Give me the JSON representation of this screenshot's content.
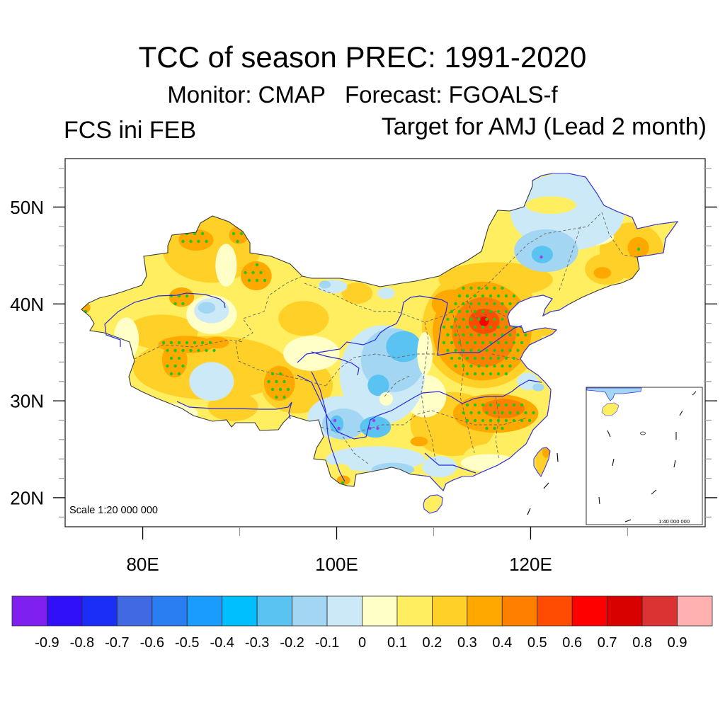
{
  "header": {
    "title": "TCC of season PREC: 1991-2020",
    "subtitle": "Monitor: CMAP   Forecast: FGOALS-f",
    "left_label": "FCS ini FEB",
    "right_label": "Target for AMJ (Lead 2 month)"
  },
  "chart_data": {
    "type": "heatmap",
    "title": "TCC of season PREC: 1991-2020",
    "subtitle": "Monitor: CMAP   Forecast: FGOALS-f",
    "left_string": "FCS ini FEB",
    "right_string": "Target for AMJ (Lead 2 month)",
    "xlabel": "",
    "ylabel": "",
    "xlim": [
      72,
      138
    ],
    "ylim": [
      17,
      55
    ],
    "grid": false,
    "x_ticks": [
      {
        "value": 80,
        "label": "80E"
      },
      {
        "value": 100,
        "label": "100E"
      },
      {
        "value": 120,
        "label": "120E"
      }
    ],
    "x_minor_ticks": [
      90,
      110,
      130
    ],
    "y_ticks": [
      {
        "value": 50,
        "label": "50N"
      },
      {
        "value": 40,
        "label": "40N"
      },
      {
        "value": 30,
        "label": "30N"
      },
      {
        "value": 20,
        "label": "20N"
      }
    ],
    "y_minor_step": 2,
    "scale_label": "Scale 1:20 000 000",
    "inset_scale_label": "1:40 000 000",
    "colorbar": {
      "position": "bottom",
      "levels": [
        -0.9,
        -0.8,
        -0.7,
        -0.6,
        -0.5,
        -0.4,
        -0.3,
        -0.2,
        -0.1,
        0,
        0.1,
        0.2,
        0.3,
        0.4,
        0.5,
        0.6,
        0.7,
        0.8,
        0.9
      ],
      "labels": [
        "-0.9",
        "-0.8",
        "-0.7",
        "-0.6",
        "-0.5",
        "-0.4",
        "-0.3",
        "-0.2",
        "-0.1",
        "0",
        "0.1",
        "0.2",
        "0.3",
        "0.4",
        "0.5",
        "0.6",
        "0.7",
        "0.8",
        "0.9"
      ],
      "colors": [
        "#8020F0",
        "#3010F8",
        "#1A2EF5",
        "#4169E1",
        "#2B7DF2",
        "#1A9CFF",
        "#00BFFF",
        "#5AC3F2",
        "#A2D6F2",
        "#CCE9F8",
        "#FFFFC8",
        "#FFEE60",
        "#FFD028",
        "#FFA800",
        "#FF8000",
        "#FF4C00",
        "#FF0000",
        "#D90000",
        "#DB3333",
        "#FFB0B0"
      ]
    },
    "base_value": 0.15,
    "field": [
      {
        "lon": 87.1,
        "lat": 45.8,
        "dlon": 5.1,
        "dlat": 3.6,
        "value": 0.25
      },
      {
        "lon": 82.0,
        "lat": 37.1,
        "dlon": 3.7,
        "dlat": 1.8,
        "value": 0.25
      },
      {
        "lon": 87.1,
        "lat": 33.4,
        "dlon": 8.1,
        "dlat": 3.3,
        "value": 0.25
      },
      {
        "lon": 95.9,
        "lat": 31.6,
        "dlon": 3.7,
        "dlat": 2.9,
        "value": 0.25
      },
      {
        "lon": 89.3,
        "lat": 29.4,
        "dlon": 2.6,
        "dlat": 1.5,
        "value": 0.25
      },
      {
        "lon": 96.6,
        "lat": 38.5,
        "dlon": 2.6,
        "dlat": 1.8,
        "value": 0.25
      },
      {
        "lon": 102.1,
        "lat": 41.1,
        "dlon": 1.6,
        "dlat": 1.1,
        "value": 0.25
      },
      {
        "lon": 112.0,
        "lat": 27.6,
        "dlon": 4.4,
        "dlat": 3.3,
        "value": 0.25
      },
      {
        "lon": 115.0,
        "lat": 37.5,
        "dlon": 6.2,
        "dlat": 6.2,
        "value": 0.25
      },
      {
        "lon": 116.4,
        "lat": 42.5,
        "dlon": 5.9,
        "dlat": 1.8,
        "value": 0.25
      },
      {
        "lon": 130.4,
        "lat": 45.5,
        "dlon": 3.3,
        "dlat": 2.9,
        "value": 0.25
      },
      {
        "lon": 127.8,
        "lat": 43.6,
        "dlon": 2.2,
        "dlat": 1.6,
        "value": 0.25
      },
      {
        "lon": 121.6,
        "lat": 37.4,
        "dlon": 1.8,
        "dlat": 0.7,
        "value": 0.25
      },
      {
        "lon": 121.2,
        "lat": 23.8,
        "dlon": 0.7,
        "dlat": 1.5,
        "value": 0.25
      },
      {
        "lon": 82.0,
        "lat": 28.7,
        "dlon": 3.7,
        "dlat": 1.1,
        "value": 0.05
      },
      {
        "lon": 78.3,
        "lat": 36.4,
        "dlon": 1.3,
        "dlat": 2.2,
        "value": 0.05
      },
      {
        "lon": 88.6,
        "lat": 44.0,
        "dlon": 1.1,
        "dlat": 2.2,
        "value": 0.05
      },
      {
        "lon": 87.1,
        "lat": 38.9,
        "dlon": 2.6,
        "dlat": 2.0,
        "value": 0.05
      },
      {
        "lon": 97.4,
        "lat": 34.9,
        "dlon": 2.9,
        "dlat": 1.8,
        "value": 0.05
      },
      {
        "lon": 109.1,
        "lat": 30.5,
        "dlon": 2.2,
        "dlat": 2.2,
        "value": 0.05
      },
      {
        "lon": 116.4,
        "lat": 24.3,
        "dlon": 3.3,
        "dlat": 1.3,
        "value": 0.15
      },
      {
        "lon": 115.7,
        "lat": 23.6,
        "dlon": 2.9,
        "dlat": 0.9,
        "value": 0.05
      },
      {
        "lon": 126.0,
        "lat": 46.9,
        "dlon": 2.6,
        "dlat": 0.9,
        "value": 0.05
      },
      {
        "lon": 124.5,
        "lat": 41.1,
        "dlon": 1.8,
        "dlat": 0.9,
        "value": 0.15
      },
      {
        "lon": 87.1,
        "lat": 32.0,
        "dlon": 2.3,
        "dlat": 2.0,
        "value": -0.05
      },
      {
        "lon": 87.1,
        "lat": 39.3,
        "dlon": 1.8,
        "dlat": 1.3,
        "value": -0.05
      },
      {
        "lon": 86.6,
        "lat": 39.6,
        "dlon": 0.9,
        "dlat": 0.6,
        "value": -0.15
      },
      {
        "lon": 99.6,
        "lat": 41.8,
        "dlon": 1.5,
        "dlat": 0.7,
        "value": -0.05
      },
      {
        "lon": 98.8,
        "lat": 42.0,
        "dlon": 0.6,
        "dlat": 0.4,
        "value": -0.15
      },
      {
        "lon": 105.1,
        "lat": 41.1,
        "dlon": 0.9,
        "dlat": 0.6,
        "value": -0.05
      },
      {
        "lon": 104.7,
        "lat": 32.7,
        "dlon": 4.4,
        "dlat": 5.1,
        "value": -0.05
      },
      {
        "lon": 105.8,
        "lat": 34.2,
        "dlon": 3.3,
        "dlat": 3.3,
        "value": -0.15
      },
      {
        "lon": 106.9,
        "lat": 35.6,
        "dlon": 1.8,
        "dlat": 1.6,
        "value": -0.25
      },
      {
        "lon": 104.3,
        "lat": 31.6,
        "dlon": 1.1,
        "dlat": 1.1,
        "value": -0.25
      },
      {
        "lon": 100.3,
        "lat": 28.3,
        "dlon": 3.3,
        "dlat": 2.2,
        "value": -0.05
      },
      {
        "lon": 100.7,
        "lat": 27.6,
        "dlon": 2.2,
        "dlat": 1.6,
        "value": -0.15
      },
      {
        "lon": 100.0,
        "lat": 27.6,
        "dlon": 0.7,
        "dlat": 0.9,
        "value": -0.25
      },
      {
        "lon": 104.0,
        "lat": 27.3,
        "dlon": 1.6,
        "dlat": 1.1,
        "value": -0.25
      },
      {
        "lon": 104.0,
        "lat": 24.0,
        "dlon": 5.1,
        "dlat": 1.3,
        "value": -0.05
      },
      {
        "lon": 105.8,
        "lat": 22.9,
        "dlon": 2.2,
        "dlat": 0.7,
        "value": -0.15
      },
      {
        "lon": 110.6,
        "lat": 23.2,
        "dlon": 1.8,
        "dlat": 1.1,
        "value": -0.05
      },
      {
        "lon": 119.7,
        "lat": 32.0,
        "dlon": 1.1,
        "dlat": 0.9,
        "value": -0.05
      },
      {
        "lon": 120.8,
        "lat": 31.4,
        "dlon": 0.6,
        "dlat": 0.4,
        "value": -0.15
      },
      {
        "lon": 123.8,
        "lat": 49.5,
        "dlon": 5.9,
        "dlat": 4.0,
        "value": -0.05
      },
      {
        "lon": 121.6,
        "lat": 45.5,
        "dlon": 3.3,
        "dlat": 2.2,
        "value": -0.15
      },
      {
        "lon": 121.2,
        "lat": 45.1,
        "dlon": 1.1,
        "dlat": 0.9,
        "value": -0.25
      },
      {
        "lon": 105.1,
        "lat": 30.2,
        "dlon": 0.7,
        "dlat": 0.7,
        "value": 0.05
      },
      {
        "lon": 100.3,
        "lat": 22.9,
        "dlon": 1.1,
        "dlat": 0.6,
        "value": 0.15
      },
      {
        "lon": 122.1,
        "lat": 50.2,
        "dlon": 2.6,
        "dlat": 0.9,
        "value": 0.15
      },
      {
        "lon": 85.5,
        "lat": 46.6,
        "dlon": 1.8,
        "dlat": 1.1,
        "value": 0.35
      },
      {
        "lon": 89.9,
        "lat": 47.1,
        "dlon": 1.0,
        "dlat": 0.9,
        "value": 0.35
      },
      {
        "lon": 91.7,
        "lat": 42.9,
        "dlon": 1.6,
        "dlat": 1.5,
        "value": 0.35
      },
      {
        "lon": 84.0,
        "lat": 40.7,
        "dlon": 1.3,
        "dlat": 1.0,
        "value": 0.35
      },
      {
        "lon": 84.5,
        "lat": 35.8,
        "dlon": 2.9,
        "dlat": 0.9,
        "value": 0.35
      },
      {
        "lon": 83.3,
        "lat": 34.2,
        "dlon": 1.3,
        "dlat": 1.8,
        "value": 0.35
      },
      {
        "lon": 87.6,
        "lat": 36.0,
        "dlon": 1.3,
        "dlat": 0.6,
        "value": 0.35
      },
      {
        "lon": 94.1,
        "lat": 31.8,
        "dlon": 1.6,
        "dlat": 1.8,
        "value": 0.35
      },
      {
        "lon": 73.9,
        "lat": 39.6,
        "dlon": 0.7,
        "dlat": 0.6,
        "value": 0.35
      },
      {
        "lon": 100.7,
        "lat": 21.8,
        "dlon": 0.7,
        "dlat": 0.5,
        "value": 0.35
      },
      {
        "lon": 108.5,
        "lat": 25.8,
        "dlon": 0.9,
        "dlat": 0.5,
        "value": 0.35
      },
      {
        "lon": 116.4,
        "lat": 28.7,
        "dlon": 4.4,
        "dlat": 2.0,
        "value": 0.35
      },
      {
        "lon": 117.2,
        "lat": 29.2,
        "dlon": 2.2,
        "dlat": 1.0,
        "value": 0.45
      },
      {
        "lon": 115.0,
        "lat": 37.2,
        "dlon": 5.1,
        "dlat": 5.1,
        "value": 0.35
      },
      {
        "lon": 112.0,
        "lat": 40.0,
        "dlon": 2.2,
        "dlat": 1.5,
        "value": 0.35
      },
      {
        "lon": 115.2,
        "lat": 37.1,
        "dlon": 3.3,
        "dlat": 3.6,
        "value": 0.45
      },
      {
        "lon": 115.2,
        "lat": 38.2,
        "dlon": 1.6,
        "dlat": 1.3,
        "value": 0.55
      },
      {
        "lon": 115.2,
        "lat": 38.2,
        "dlon": 0.5,
        "dlat": 0.5,
        "value": 0.65
      },
      {
        "lon": 131.1,
        "lat": 45.8,
        "dlon": 1.1,
        "dlat": 1.1,
        "value": 0.35
      },
      {
        "lon": 127.4,
        "lat": 43.2,
        "dlon": 0.9,
        "dlat": 0.6,
        "value": 0.35
      },
      {
        "lon": 121.6,
        "lat": 24.7,
        "dlon": 0.4,
        "dlat": 0.6,
        "value": 0.35
      },
      {
        "lon": 109.1,
        "lat": 34.9,
        "dlon": 0.8,
        "dlat": 2.2,
        "value": 0.05
      }
    ],
    "stippling": [
      {
        "lon": 85.5,
        "lat": 46.6,
        "dlon": 1.6,
        "dlat": 0.95,
        "sign": "positive"
      },
      {
        "lon": 90.0,
        "lat": 47.1,
        "dlon": 0.9,
        "dlat": 0.7,
        "sign": "positive"
      },
      {
        "lon": 91.7,
        "lat": 42.9,
        "dlon": 1.3,
        "dlat": 1.3,
        "sign": "positive"
      },
      {
        "lon": 84.0,
        "lat": 40.7,
        "dlon": 1.1,
        "dlat": 0.9,
        "sign": "positive"
      },
      {
        "lon": 73.9,
        "lat": 39.6,
        "dlon": 0.7,
        "dlat": 0.5,
        "sign": "positive"
      },
      {
        "lon": 84.8,
        "lat": 35.6,
        "dlon": 3.3,
        "dlat": 0.75,
        "sign": "positive"
      },
      {
        "lon": 83.4,
        "lat": 34.0,
        "dlon": 1.0,
        "dlat": 1.5,
        "sign": "positive"
      },
      {
        "lon": 94.1,
        "lat": 31.6,
        "dlon": 1.3,
        "dlat": 1.5,
        "sign": "positive"
      },
      {
        "lon": 115.3,
        "lat": 37.2,
        "dlon": 4.5,
        "dlat": 5.2,
        "sign": "positive"
      },
      {
        "lon": 116.4,
        "lat": 28.7,
        "dlon": 4.0,
        "dlat": 1.6,
        "sign": "positive"
      },
      {
        "lon": 131.1,
        "lat": 45.8,
        "dlon": 0.4,
        "dlat": 0.4,
        "sign": "positive"
      },
      {
        "lon": 100.7,
        "lat": 21.8,
        "dlon": 0.6,
        "dlat": 0.4,
        "sign": "positive"
      },
      {
        "lon": 113.1,
        "lat": 41.3,
        "dlon": 0.9,
        "dlat": 0.6,
        "sign": "positive"
      },
      {
        "lon": 100.0,
        "lat": 27.6,
        "dlon": 0.65,
        "dlat": 0.8,
        "sign": "negative"
      },
      {
        "lon": 104.0,
        "lat": 27.3,
        "dlon": 1.0,
        "dlat": 0.7,
        "sign": "negative"
      },
      {
        "lon": 121.2,
        "lat": 45.1,
        "dlon": 0.5,
        "dlat": 0.4,
        "sign": "negative"
      }
    ],
    "stipple_colors": {
      "positive": "#1EC81E",
      "negative": "#A23CE6"
    }
  }
}
